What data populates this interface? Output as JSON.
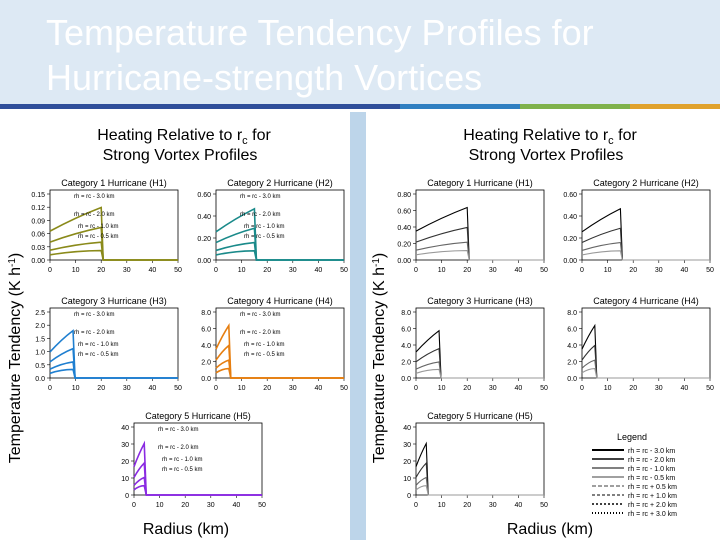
{
  "slide": {
    "title_line1": "Temperature Tendency Profiles for",
    "title_line2": "Hurricane-strength Vortices",
    "stripe_colors": [
      "#2f4f9a",
      "#2f7fc1",
      "#7fb24b",
      "#e0a22c"
    ]
  },
  "left_figure": {
    "title_line1": "Heating Relative to r",
    "title_line1_sub": "c",
    "title_line1_end": " for",
    "title_line2": "Strong Vortex Profiles",
    "y_axis_label": "Temperature Tendency (K h",
    "y_axis_label_sup": "-1",
    "y_axis_label_end": ")",
    "x_axis_label": "Radius (km)",
    "panels": [
      {
        "title": "Category 1 Hurricane (H1)",
        "color": "#8a8a1a",
        "yticks": [
          "0.15",
          "0.12",
          "0.09",
          "0.06",
          "0.03",
          "0.00"
        ],
        "labels": [
          "rh = rc - 3.0 km",
          "rh = rc - 2.0 km",
          "rh = rc - 1.0 km",
          "rh = rc - 0.5 km"
        ]
      },
      {
        "title": "Category 2 Hurricane (H2)",
        "color": "#1a8a8a",
        "yticks": [
          "0.60",
          "0.40",
          "0.20",
          "0.00"
        ],
        "labels": [
          "rh = rc - 3.0 km",
          "rh = rc - 2.0 km",
          "rh = rc - 1.0 km",
          "rh = rc - 0.5 km"
        ]
      },
      {
        "title": "Category 3 Hurricane (H3)",
        "color": "#1f7fd0",
        "yticks": [
          "2.5",
          "2.0",
          "1.5",
          "1.0",
          "0.5",
          "0.0"
        ],
        "labels": [
          "rh = rc - 3.0 km",
          "rh = rc - 2.0 km",
          "rh = rc - 1.0 km",
          "rh = rc - 0.5 km"
        ]
      },
      {
        "title": "Category 4 Hurricane (H4)",
        "color": "#e67e10",
        "yticks": [
          "8.0",
          "6.0",
          "4.0",
          "2.0",
          "0.0"
        ],
        "labels": [
          "rh = rc - 3.0 km",
          "rh = rc - 2.0 km",
          "rh = rc - 1.0 km",
          "rh = rc - 0.5 km"
        ]
      },
      {
        "title": "Category 5 Hurricane (H5)",
        "color": "#8a2be2",
        "yticks": [
          "40",
          "30",
          "20",
          "10",
          "0"
        ],
        "labels": [
          "rh = rc - 3.0 km",
          "rh = rc - 2.0 km",
          "rh = rc - 1.0 km",
          "rh = rc - 0.5 km"
        ]
      }
    ],
    "xticks": [
      "0",
      "10",
      "20",
      "30",
      "40",
      "50"
    ]
  },
  "right_figure": {
    "title_line1": "Heating Relative to r",
    "title_line1_sub": "c",
    "title_line1_end": " for",
    "title_line2": "Strong Vortex Profiles",
    "y_axis_label": "Temperature Tendency (K h",
    "y_axis_label_sup": "-1",
    "y_axis_label_end": ")",
    "x_axis_label": "Radius (km)",
    "panels": [
      {
        "title": "Category 1 Hurricane (H1)",
        "yticks": [
          "0.80",
          "0.60",
          "0.40",
          "0.20",
          "0.00"
        ]
      },
      {
        "title": "Category 2 Hurricane (H2)",
        "yticks": [
          "0.60",
          "0.40",
          "0.20",
          "0.00"
        ]
      },
      {
        "title": "Category 3 Hurricane (H3)",
        "yticks": [
          "8.0",
          "6.0",
          "4.0",
          "2.0",
          "0.0"
        ]
      },
      {
        "title": "Category 4 Hurricane (H4)",
        "yticks": [
          "8.0",
          "6.0",
          "4.0",
          "2.0",
          "0.0"
        ]
      },
      {
        "title": "Category 5 Hurricane (H5)",
        "yticks": [
          "40",
          "30",
          "20",
          "10",
          "0"
        ]
      }
    ],
    "xticks": [
      "0",
      "10",
      "20",
      "30",
      "40",
      "50"
    ],
    "legend": {
      "title": "Legend",
      "entries": [
        "rh = rc - 3.0 km",
        "rh = rc - 2.0 km",
        "rh = rc - 1.0 km",
        "rh = rc - 0.5 km",
        "rh = rc + 0.5 km",
        "rh = rc + 1.0 km",
        "rh = rc + 2.0 km",
        "rh = rc + 3.0 km"
      ]
    }
  }
}
